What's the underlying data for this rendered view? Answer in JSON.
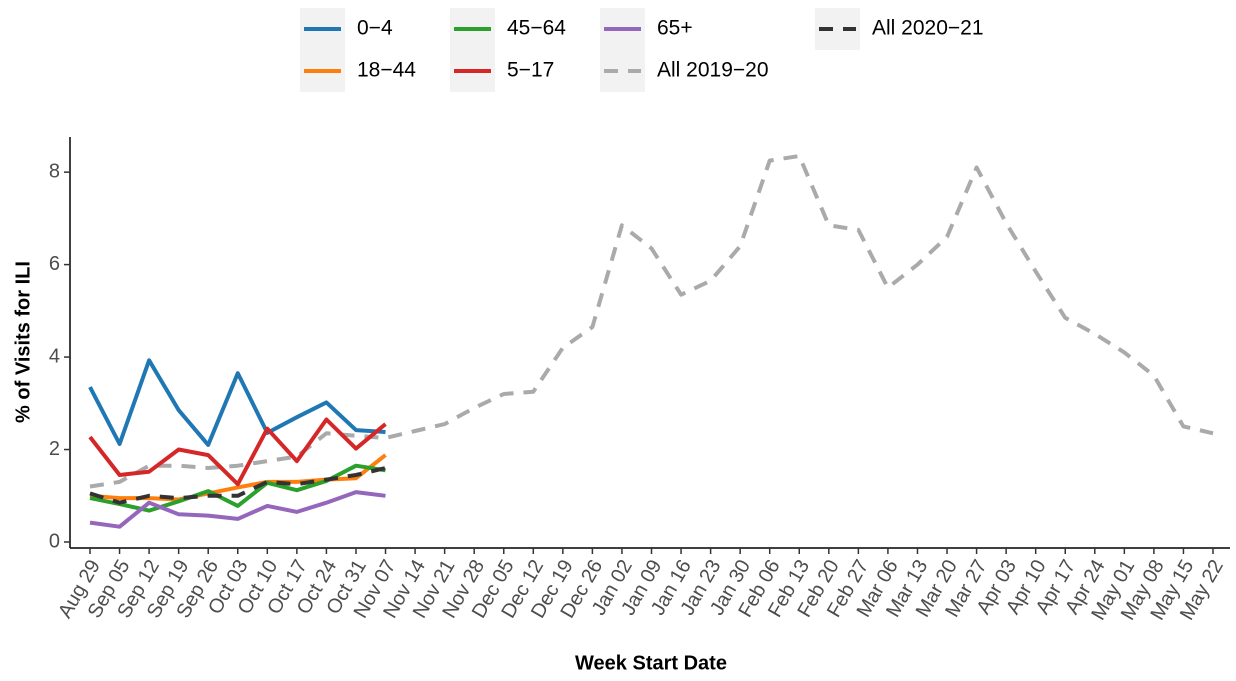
{
  "chart_data": {
    "type": "line",
    "x_label": "Week Start Date",
    "y_label": "% of Visits for ILI",
    "categories": [
      "Aug 29",
      "Sep 05",
      "Sep 12",
      "Sep 19",
      "Sep 26",
      "Oct 03",
      "Oct 10",
      "Oct 17",
      "Oct 24",
      "Oct 31",
      "Nov 07",
      "Nov 14",
      "Nov 21",
      "Nov 28",
      "Dec 05",
      "Dec 12",
      "Dec 19",
      "Dec 26",
      "Jan 02",
      "Jan 09",
      "Jan 16",
      "Jan 23",
      "Jan 30",
      "Feb 06",
      "Feb 13",
      "Feb 20",
      "Feb 27",
      "Mar 06",
      "Mar 13",
      "Mar 20",
      "Mar 27",
      "Apr 03",
      "Apr 10",
      "Apr 17",
      "Apr 24",
      "May 01",
      "May 08",
      "May 15",
      "May 22"
    ],
    "ylim": [
      -0.13,
      8.76
    ],
    "yticks": [
      0,
      2,
      4,
      6,
      8
    ],
    "series": [
      {
        "name": "0−4",
        "color": "#1f77b4",
        "linestyle": "solid",
        "values": [
          3.35,
          2.12,
          3.93,
          2.85,
          2.1,
          3.65,
          2.36,
          2.7,
          3.02,
          2.42,
          2.38,
          null,
          null,
          null,
          null,
          null,
          null,
          null,
          null,
          null,
          null,
          null,
          null,
          null,
          null,
          null,
          null,
          null,
          null,
          null,
          null,
          null,
          null,
          null,
          null,
          null,
          null,
          null,
          null
        ]
      },
      {
        "name": "18−44",
        "color": "#ff7f0e",
        "linestyle": "solid",
        "values": [
          1.0,
          0.95,
          0.95,
          0.92,
          1.05,
          1.18,
          1.3,
          1.3,
          1.35,
          1.38,
          1.88,
          null,
          null,
          null,
          null,
          null,
          null,
          null,
          null,
          null,
          null,
          null,
          null,
          null,
          null,
          null,
          null,
          null,
          null,
          null,
          null,
          null,
          null,
          null,
          null,
          null,
          null,
          null,
          null
        ]
      },
      {
        "name": "45−64",
        "color": "#2ca02c",
        "linestyle": "solid",
        "values": [
          0.95,
          0.82,
          0.68,
          0.88,
          1.1,
          0.78,
          1.28,
          1.12,
          1.32,
          1.65,
          1.55,
          null,
          null,
          null,
          null,
          null,
          null,
          null,
          null,
          null,
          null,
          null,
          null,
          null,
          null,
          null,
          null,
          null,
          null,
          null,
          null,
          null,
          null,
          null,
          null,
          null,
          null,
          null,
          null
        ]
      },
      {
        "name": "5−17",
        "color": "#d62728",
        "linestyle": "solid",
        "values": [
          2.27,
          1.45,
          1.52,
          2.0,
          1.88,
          1.25,
          2.45,
          1.75,
          2.65,
          2.02,
          2.55,
          null,
          null,
          null,
          null,
          null,
          null,
          null,
          null,
          null,
          null,
          null,
          null,
          null,
          null,
          null,
          null,
          null,
          null,
          null,
          null,
          null,
          null,
          null,
          null,
          null,
          null,
          null,
          null
        ]
      },
      {
        "name": "65+",
        "color": "#9467bd",
        "linestyle": "solid",
        "values": [
          0.42,
          0.33,
          0.85,
          0.6,
          0.57,
          0.5,
          0.78,
          0.65,
          0.85,
          1.08,
          1.0,
          null,
          null,
          null,
          null,
          null,
          null,
          null,
          null,
          null,
          null,
          null,
          null,
          null,
          null,
          null,
          null,
          null,
          null,
          null,
          null,
          null,
          null,
          null,
          null,
          null,
          null,
          null,
          null
        ]
      },
      {
        "name": "All 2019−20",
        "color": "#aaaaaa",
        "linestyle": "dashed",
        "values": [
          1.2,
          1.3,
          1.65,
          1.65,
          1.6,
          1.65,
          1.75,
          1.85,
          2.35,
          2.3,
          2.25,
          2.4,
          2.55,
          2.9,
          3.2,
          3.25,
          4.2,
          4.65,
          6.85,
          6.35,
          5.35,
          5.65,
          6.4,
          8.25,
          8.35,
          6.85,
          6.75,
          5.5,
          6.0,
          6.6,
          8.1,
          6.9,
          5.85,
          4.85,
          4.5,
          4.1,
          3.6,
          2.5,
          2.35
        ]
      },
      {
        "name": "All 2020−21",
        "color": "#333333",
        "linestyle": "dashed",
        "values": [
          1.05,
          0.85,
          1.0,
          0.95,
          1.0,
          1.0,
          1.3,
          1.25,
          1.35,
          1.45,
          1.6,
          null,
          null,
          null,
          null,
          null,
          null,
          null,
          null,
          null,
          null,
          null,
          null,
          null,
          null,
          null,
          null,
          null,
          null,
          null,
          null,
          null,
          null,
          null,
          null,
          null,
          null,
          null,
          null
        ]
      }
    ]
  }
}
